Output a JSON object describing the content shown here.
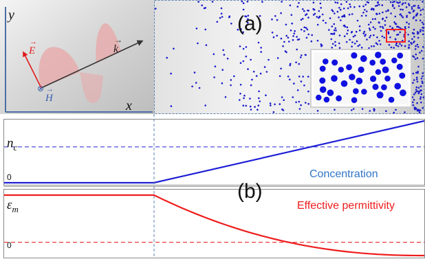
{
  "panel_labels": {
    "a": "(a)",
    "b": "(b)"
  },
  "wave_panel": {
    "axis_y": "y",
    "axis_x": "x",
    "e_field": "E",
    "h_field": "H",
    "k_vector": "k",
    "h_symbol": "⊗"
  },
  "concentration_plot": {
    "ylabel": "n",
    "ylabel_sub": "c",
    "zero_label": "0",
    "legend": "Concentration"
  },
  "permittivity_plot": {
    "ylabel": "ε",
    "ylabel_sub": "m",
    "zero_label": "0",
    "legend": "Effective permittivity"
  },
  "colors": {
    "concentration": "#1f1fd6",
    "permittivity": "#ee1c1c",
    "legend_blue": "#2f74c6",
    "particles": "#1a1acc",
    "panel_border": "#4a6fa5",
    "highlight_box": "#ff2020"
  },
  "chart_data": [
    {
      "type": "line",
      "series": [
        {
          "x": [
            0,
            1,
            2
          ],
          "y": [
            0,
            0,
            1
          ]
        }
      ],
      "reference_line": 0.58
    },
    {
      "type": "line",
      "series": [
        {
          "x": [
            0,
            1,
            2
          ],
          "y": [
            1,
            1,
            0
          ]
        }
      ],
      "reference_line": 0.22
    }
  ]
}
